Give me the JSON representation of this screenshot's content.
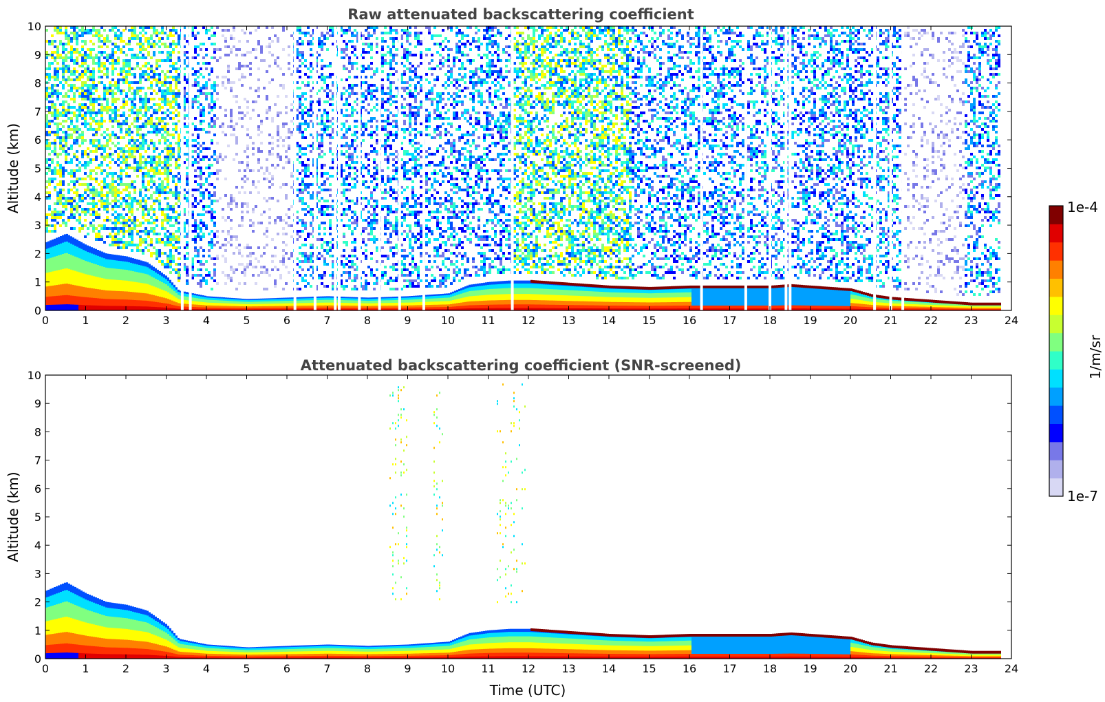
{
  "chart_data": [
    {
      "type": "heatmap",
      "title": "Raw attenuated backscattering coefficient",
      "xlabel": "",
      "ylabel": "Altitude (km)",
      "xlim": [
        0,
        24
      ],
      "ylim": [
        0,
        10
      ],
      "x_ticks": [
        "0",
        "1",
        "2",
        "3",
        "4",
        "5",
        "6",
        "7",
        "8",
        "9",
        "10",
        "11",
        "12",
        "13",
        "14",
        "15",
        "16",
        "17",
        "18",
        "19",
        "20",
        "21",
        "22",
        "23",
        "24"
      ],
      "y_ticks": [
        "0",
        "1",
        "2",
        "3",
        "4",
        "5",
        "6",
        "7",
        "8",
        "9",
        "10"
      ],
      "z_scale": "log",
      "z_range": [
        1e-07,
        0.0001
      ],
      "layers": {
        "boundary_layer_top_km": {
          "x": [
            0,
            0.5,
            1,
            1.5,
            2,
            2.5,
            3,
            3.3,
            4,
            5,
            6,
            7,
            8,
            9,
            10,
            10.5,
            11,
            11.5,
            12,
            13,
            14,
            15,
            16,
            17,
            18,
            18.5,
            19,
            20,
            20.5,
            21,
            22,
            23,
            23.7
          ],
          "y": [
            2.4,
            2.7,
            2.3,
            2.0,
            1.9,
            1.7,
            1.2,
            0.7,
            0.5,
            0.4,
            0.45,
            0.5,
            0.45,
            0.5,
            0.6,
            0.9,
            1.0,
            1.05,
            1.05,
            0.95,
            0.85,
            0.8,
            0.85,
            0.85,
            0.85,
            0.9,
            0.85,
            0.75,
            0.55,
            0.45,
            0.35,
            0.25,
            0.25
          ]
        },
        "upper_noise_top_km": 10,
        "noise_level_by_hour": [
          {
            "x": [
              0,
              3.3
            ],
            "level": "high"
          },
          {
            "x": [
              3.3,
              4.2
            ],
            "level": "medium"
          },
          {
            "x": [
              4.2,
              6.1
            ],
            "level": "low"
          },
          {
            "x": [
              6.1,
              11.6
            ],
            "level": "medium"
          },
          {
            "x": [
              11.6,
              14.5
            ],
            "level": "high"
          },
          {
            "x": [
              14.5,
              21.2
            ],
            "level": "medium"
          },
          {
            "x": [
              21.2,
              22.8
            ],
            "level": "low"
          },
          {
            "x": [
              22.8,
              23.7
            ],
            "level": "medium"
          }
        ],
        "gaps_hours": [
          3.4,
          3.6,
          6.2,
          6.7,
          7.2,
          7.3,
          7.8,
          8.3,
          8.8,
          9.4,
          11.6,
          16.3,
          17.4,
          18.0,
          18.4,
          18.5,
          20.6,
          21.0,
          21.3
        ]
      }
    },
    {
      "type": "heatmap",
      "title": "Attenuated backscattering coefficient (SNR-screened)",
      "xlabel": "Time (UTC)",
      "ylabel": "Altitude (km)",
      "xlim": [
        0,
        24
      ],
      "ylim": [
        0,
        10
      ],
      "x_ticks": [
        "0",
        "1",
        "2",
        "3",
        "4",
        "5",
        "6",
        "7",
        "8",
        "9",
        "10",
        "11",
        "12",
        "13",
        "14",
        "15",
        "16",
        "17",
        "18",
        "19",
        "20",
        "21",
        "22",
        "23",
        "24"
      ],
      "y_ticks": [
        "0",
        "1",
        "2",
        "3",
        "4",
        "5",
        "6",
        "7",
        "8",
        "9",
        "10"
      ],
      "z_scale": "log",
      "z_range": [
        1e-07,
        0.0001
      ],
      "layers": {
        "boundary_layer_top_km": {
          "x": [
            0,
            0.5,
            1,
            1.5,
            2,
            2.5,
            3,
            3.3,
            4,
            5,
            6,
            7,
            8,
            9,
            10,
            10.5,
            11,
            11.5,
            12,
            13,
            14,
            15,
            16,
            17,
            18,
            18.5,
            19,
            20,
            20.5,
            21,
            22,
            23,
            23.7
          ],
          "y": [
            2.4,
            2.7,
            2.3,
            2.0,
            1.9,
            1.7,
            1.2,
            0.7,
            0.5,
            0.4,
            0.45,
            0.5,
            0.45,
            0.5,
            0.6,
            0.9,
            1.0,
            1.05,
            1.05,
            0.95,
            0.85,
            0.8,
            0.85,
            0.85,
            0.85,
            0.9,
            0.85,
            0.75,
            0.55,
            0.45,
            0.35,
            0.25,
            0.25
          ]
        },
        "sparse_plumes": [
          {
            "x": [
              8.5,
              9.0
            ],
            "y": [
              2.0,
              9.8
            ]
          },
          {
            "x": [
              9.6,
              9.9
            ],
            "y": [
              2.0,
              9.8
            ]
          },
          {
            "x": [
              11.2,
              11.9
            ],
            "y": [
              2.0,
              9.8
            ]
          }
        ]
      }
    }
  ],
  "colorbar": {
    "label": "1/m/sr",
    "min_label": "1e-7",
    "max_label": "1e-4",
    "colors": [
      "#d8d8f4",
      "#b0b0ec",
      "#7878e8",
      "#0000ff",
      "#0050ff",
      "#00a0ff",
      "#00e0ff",
      "#30ffc8",
      "#80ff80",
      "#c8ff30",
      "#ffff00",
      "#ffc000",
      "#ff8000",
      "#ff3000",
      "#e00000",
      "#800000"
    ]
  }
}
